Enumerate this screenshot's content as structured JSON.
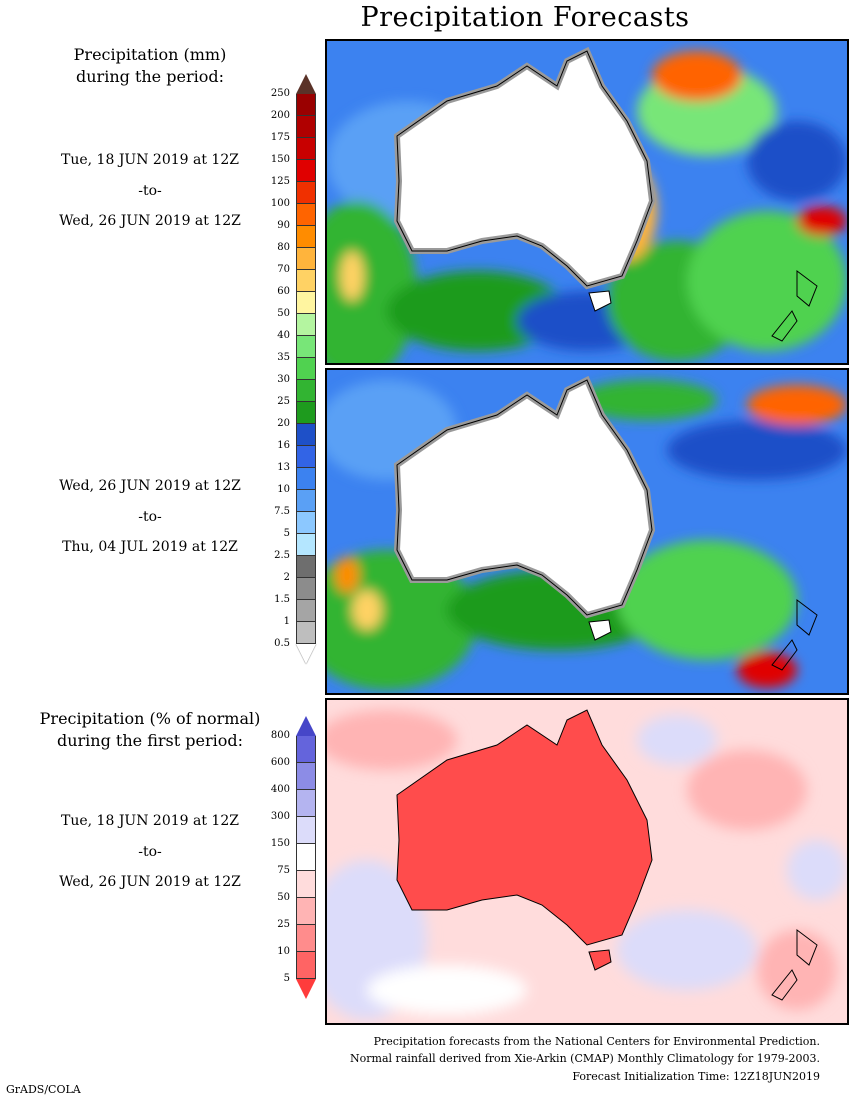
{
  "title": "Precipitation Forecasts",
  "legend_mm": {
    "heading_line1": "Precipitation (mm)",
    "heading_line2": "during the period:",
    "ticks": [
      "250",
      "200",
      "175",
      "150",
      "125",
      "100",
      "90",
      "80",
      "70",
      "60",
      "50",
      "40",
      "35",
      "30",
      "25",
      "20",
      "16",
      "13",
      "10",
      "7.5",
      "5",
      "2.5",
      "2",
      "1.5",
      "1",
      "0.5"
    ],
    "colors": [
      "#9a0000",
      "#b00000",
      "#c80000",
      "#e00000",
      "#f03000",
      "#ff6400",
      "#ff8c00",
      "#ffb43c",
      "#ffd264",
      "#fff5a0",
      "#b4f5a0",
      "#78e678",
      "#50d250",
      "#32b432",
      "#1e9b1e",
      "#1e50c8",
      "#3264e6",
      "#3c82f0",
      "#5aa0f5",
      "#8cc8ff",
      "#b4e6ff",
      "#6e6e6e",
      "#8c8c8c",
      "#a5a5a5",
      "#bebebe"
    ],
    "top_arrow_color": "#5a3228"
  },
  "period1": {
    "start": "Tue, 18 JUN 2019 at 12Z",
    "to": "-to-",
    "end": "Wed, 26 JUN 2019 at 12Z"
  },
  "period2": {
    "start": "Wed, 26 JUN 2019 at 12Z",
    "to": "-to-",
    "end": "Thu, 04 JUL 2019 at 12Z"
  },
  "legend_pct": {
    "heading_line1": "Precipitation (% of normal)",
    "heading_line2": "during the first period:",
    "ticks": [
      "800",
      "600",
      "400",
      "300",
      "150",
      "75",
      "50",
      "25",
      "10",
      "5"
    ],
    "colors": [
      "#6464dc",
      "#8c8ce6",
      "#b4b4f0",
      "#dcdcfa",
      "#ffffff",
      "#ffdcdc",
      "#ffb4b4",
      "#ff8c8c",
      "#ff6464"
    ],
    "top_arrow_color": "#4646c8",
    "bottom_arrow_color": "#ff3c3c"
  },
  "period3": {
    "start": "Tue, 18 JUN 2019 at 12Z",
    "to": "-to-",
    "end": "Wed, 26 JUN 2019 at 12Z"
  },
  "footer": {
    "line1": "Precipitation forecasts from the National Centers for Environmental Prediction.",
    "line2": "Normal rainfall derived from Xie-Arkin (CMAP) Monthly Climatology for 1979-2003.",
    "line3": "Forecast Initialization Time: 12Z18JUN2019"
  },
  "credit": "GrADS/COLA"
}
